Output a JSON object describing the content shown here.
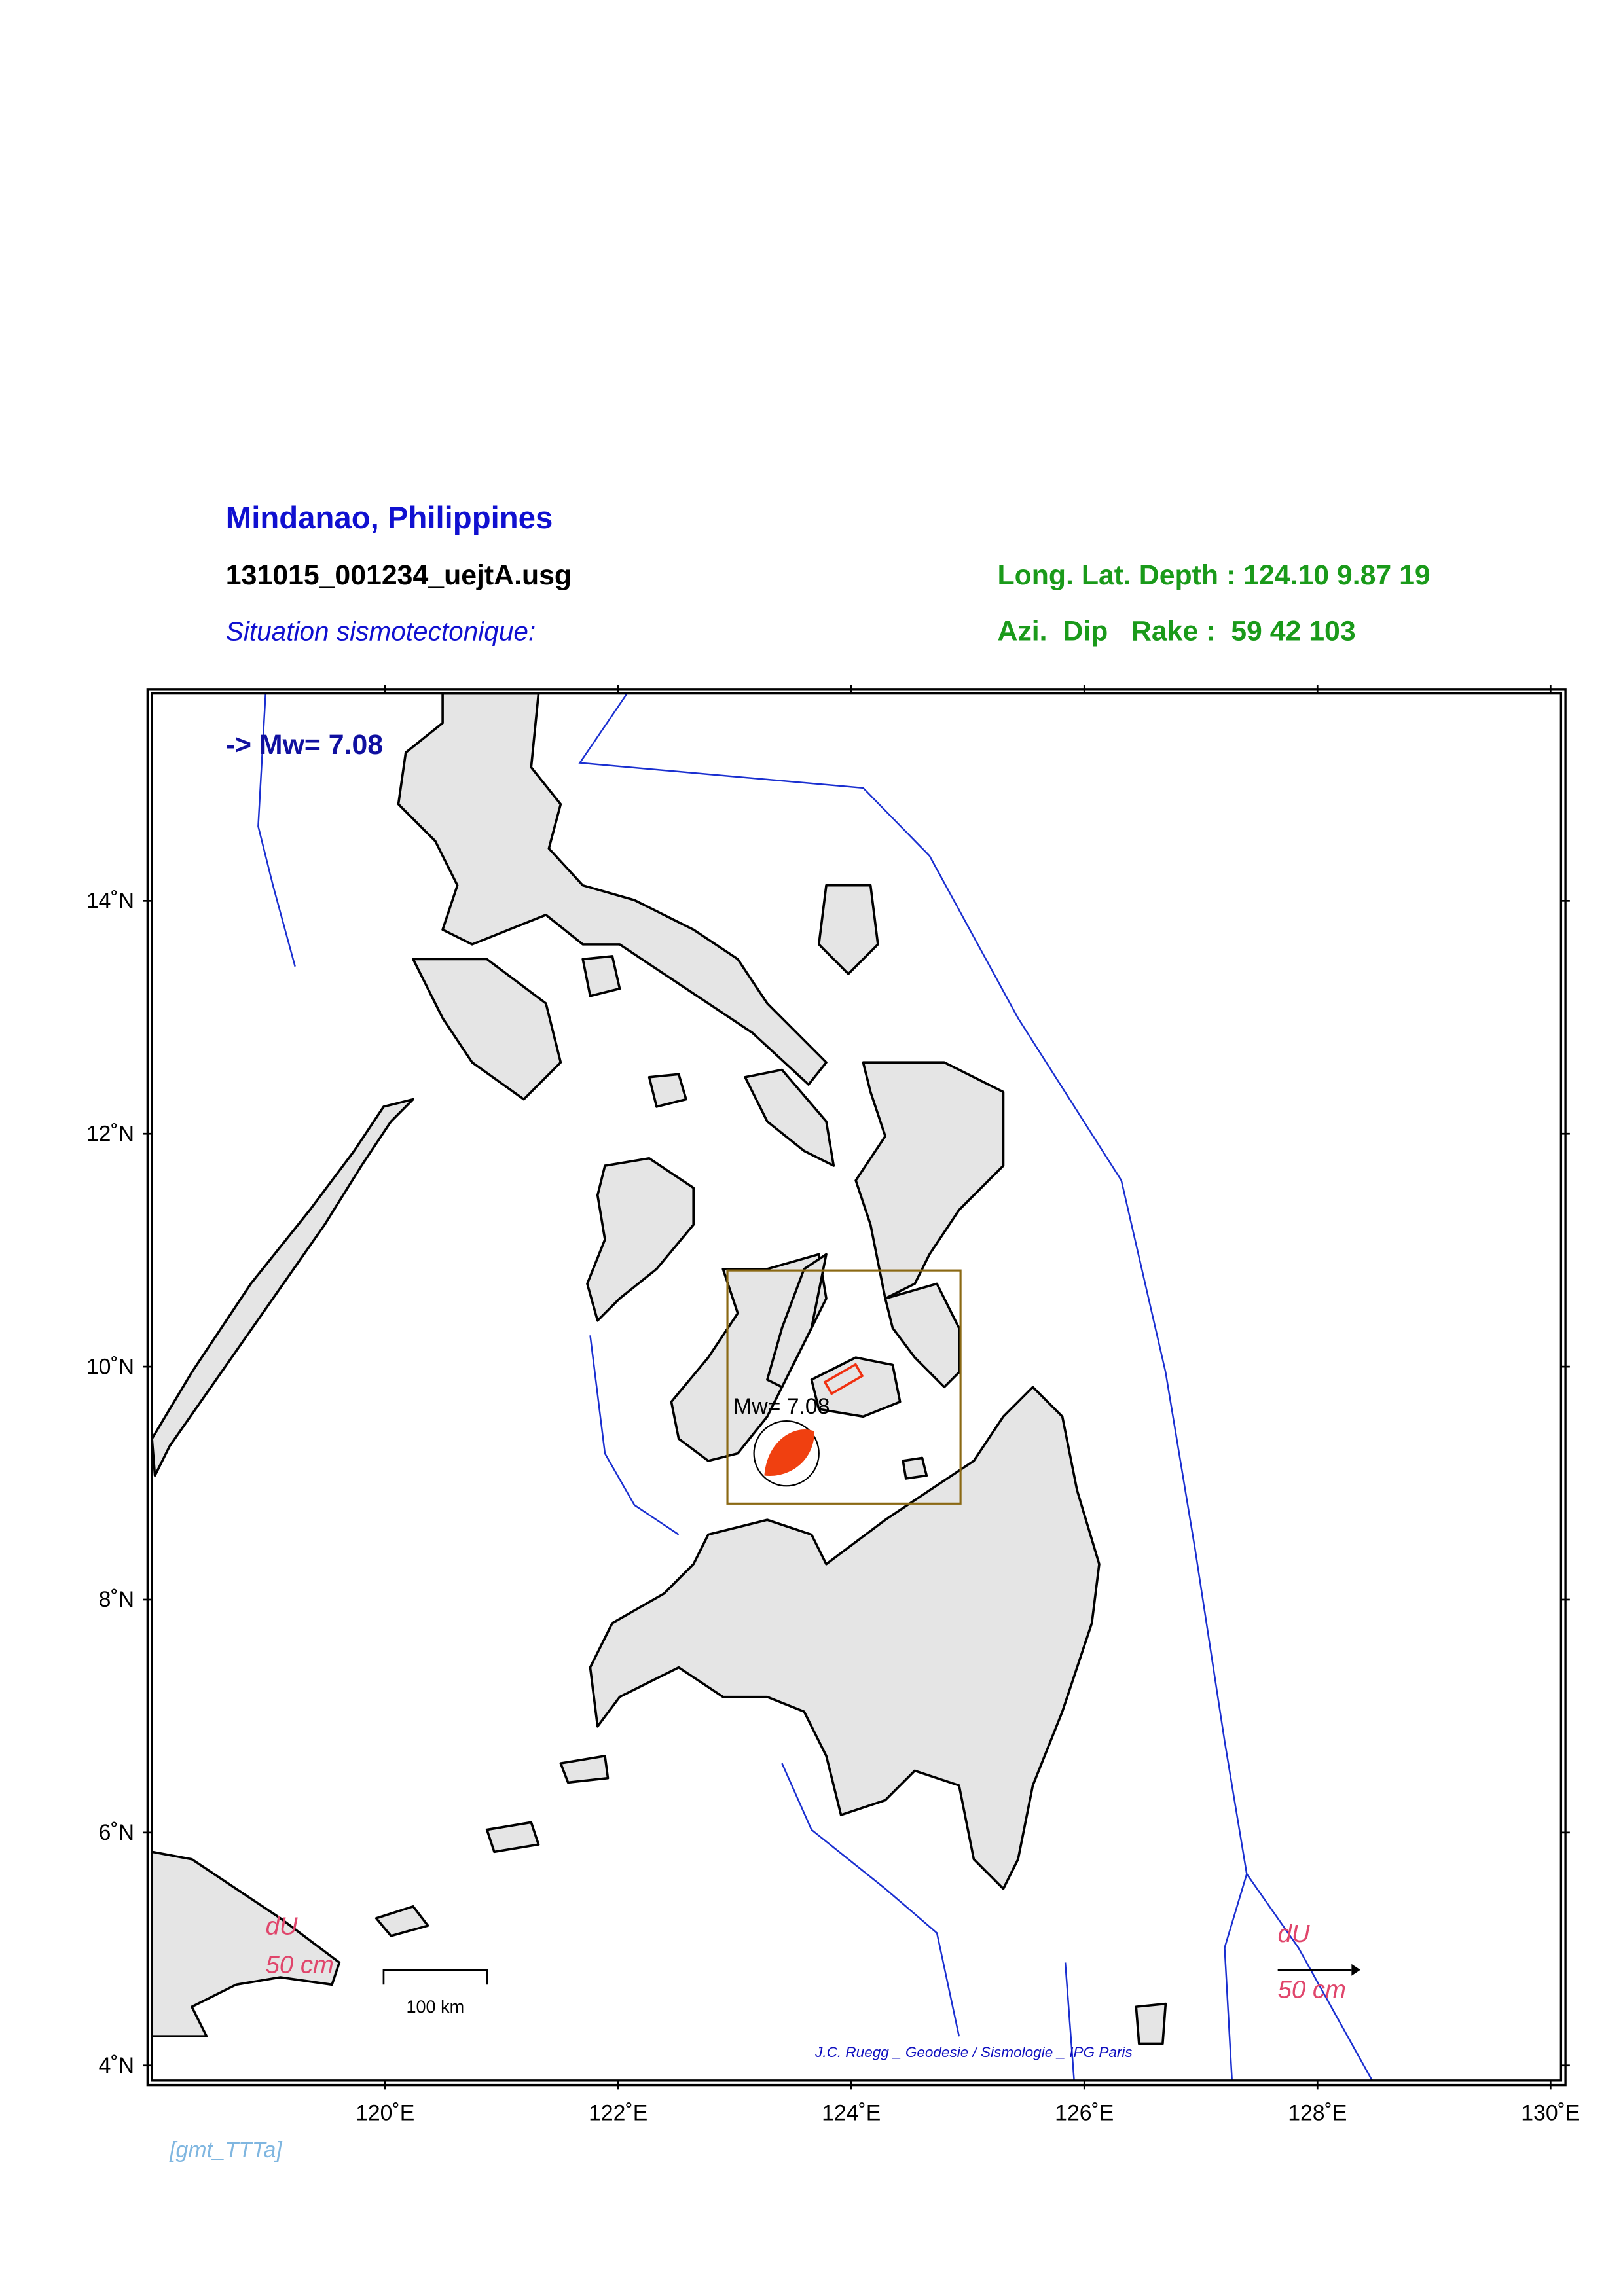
{
  "map": {
    "title": "Mindanao, Philippines",
    "file": "131015_001234_uejtA.usg",
    "subtitle": "Situation sismotectonique:",
    "location": "Long. Lat. Depth : 124.10 9.87 19",
    "mechanism": "Azi.  Dip   Rake :  59 42 103",
    "magnitude": "-> Mw= 7.08",
    "event_label": "Mw= 7.08",
    "xlim": [
      118,
      130.09
    ],
    "ylim": [
      3.87,
      15.78
    ],
    "xticks": [
      {
        "value": 120,
        "label": "120˚E"
      },
      {
        "value": 122,
        "label": "122˚E"
      },
      {
        "value": 124,
        "label": "124˚E"
      },
      {
        "value": 126,
        "label": "126˚E"
      },
      {
        "value": 128,
        "label": "128˚E"
      },
      {
        "value": 130,
        "label": "130˚E"
      }
    ],
    "yticks": [
      {
        "value": 4,
        "label": "4˚N"
      },
      {
        "value": 6,
        "label": "6˚N"
      },
      {
        "value": 8,
        "label": "8˚N"
      },
      {
        "value": 10,
        "label": "10˚N"
      },
      {
        "value": 12,
        "label": "12˚N"
      },
      {
        "value": 14,
        "label": "14˚N"
      }
    ],
    "vector_label": "dU",
    "vector_scale": "50 cm",
    "scale_bar": "100 km",
    "credit": "J.C. Ruegg _ Geodesie / Sismologie _ IPG Paris",
    "footer": "[gmt_TTTa]"
  }
}
